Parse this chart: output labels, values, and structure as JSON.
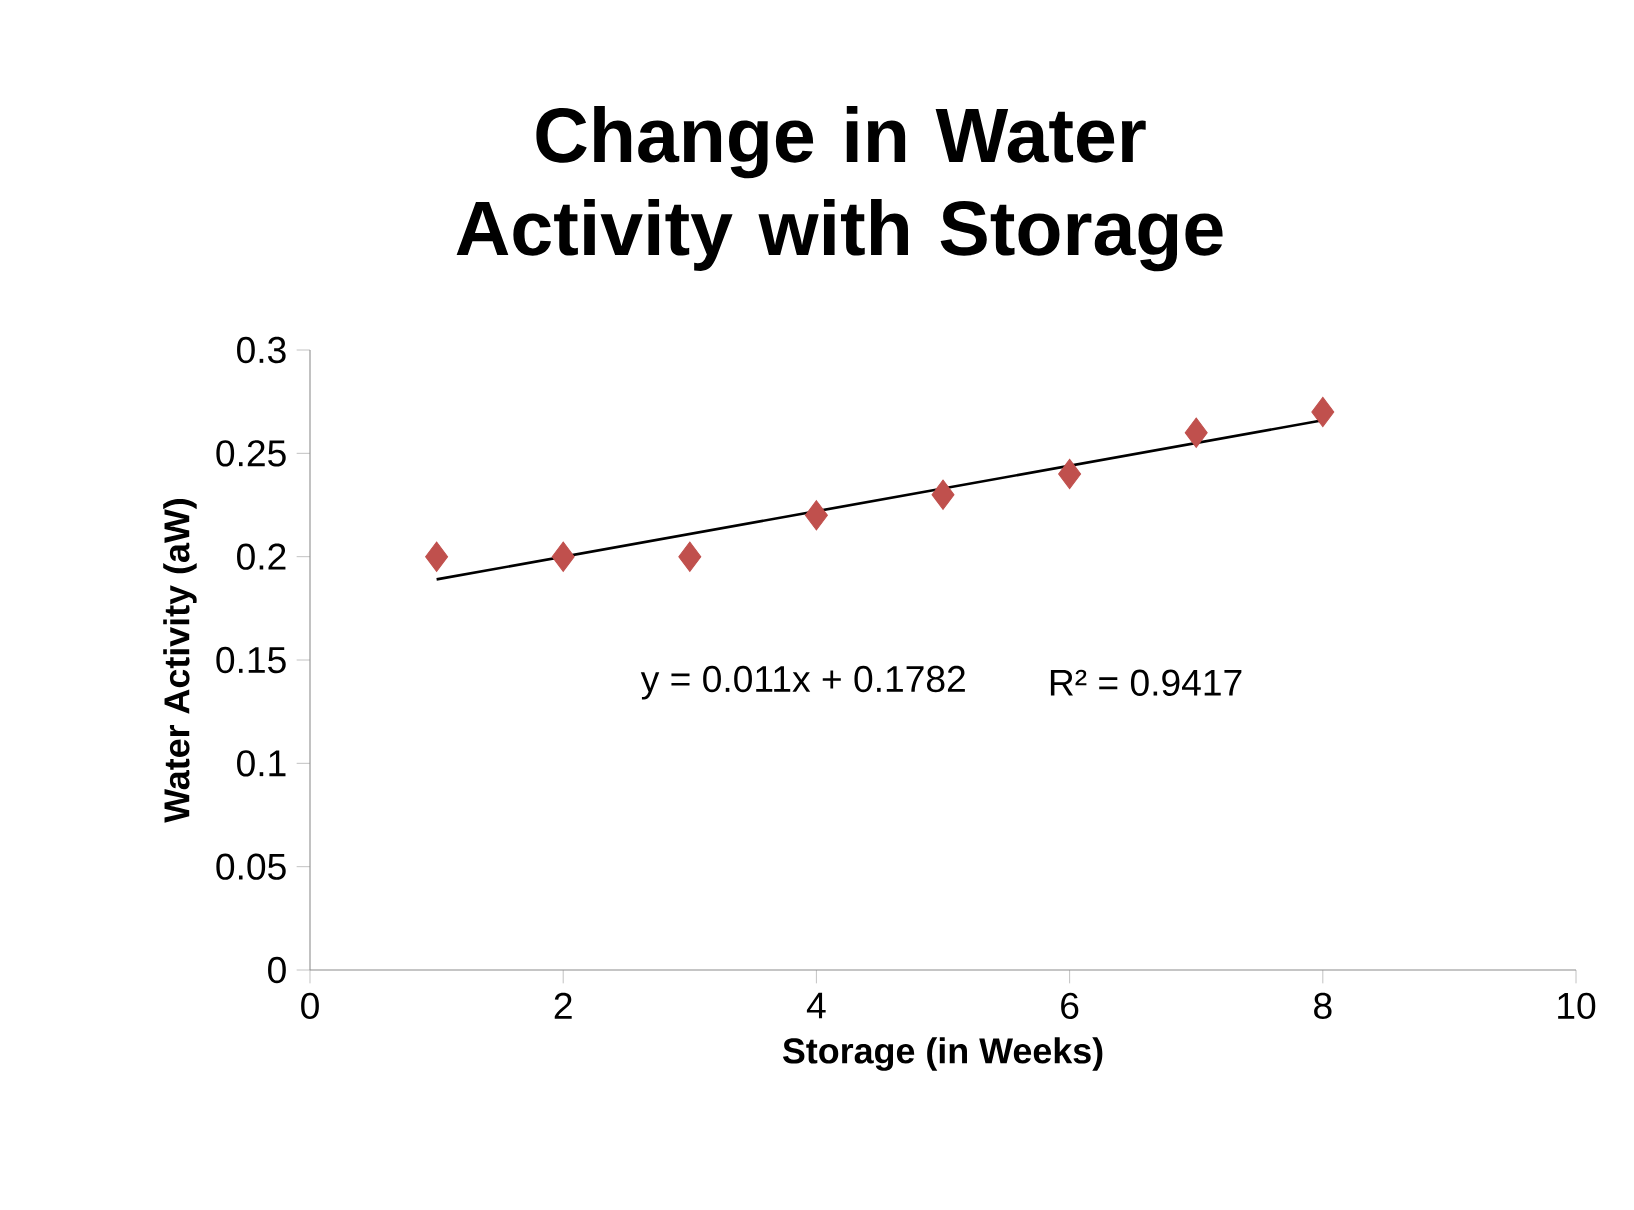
{
  "chart_data": {
    "type": "scatter",
    "title": "Change in Water Activity with Storage",
    "xlabel": "Storage (in Weeks)",
    "ylabel": "Water Activity (aW)",
    "xlim": [
      0,
      10
    ],
    "xticks": [
      0,
      2,
      4,
      6,
      8,
      10
    ],
    "ylim": [
      0,
      0.3
    ],
    "yticks": [
      0,
      0.05,
      0.1,
      0.15,
      0.2,
      0.25,
      0.3
    ],
    "grid": false,
    "marker": "diamond",
    "series": [
      {
        "color": "#c0504d",
        "x": [
          1,
          2,
          3,
          4,
          5,
          6,
          7,
          8
        ],
        "values": [
          0.2,
          0.2,
          0.2,
          0.22,
          0.23,
          0.24,
          0.26,
          0.27
        ]
      },
      {
        "type": "line",
        "color": "#000000",
        "marker": "none",
        "x": [
          1,
          8
        ],
        "values": [
          0.189,
          0.266
        ]
      }
    ],
    "annotations": [
      "y = 0.011x + 0.1782",
      "R² = 0.9417"
    ]
  }
}
